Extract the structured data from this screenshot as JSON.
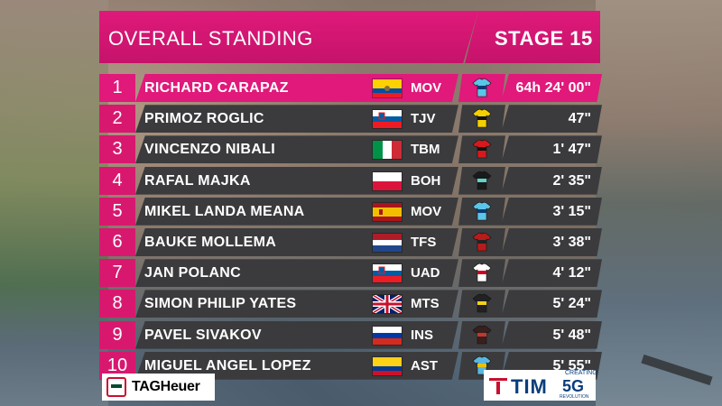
{
  "header": {
    "title": "OVERALL STANDING",
    "stage": "STAGE 15"
  },
  "colors": {
    "accent": "#e0197a",
    "row_bg": "#3b3b3d"
  },
  "rows": [
    {
      "rank": "1",
      "name": "RICHARD CARAPAZ",
      "flag": "ecuador",
      "team": "MOV",
      "jersey": "movistar",
      "time": "64h 24' 00\""
    },
    {
      "rank": "2",
      "name": "PRIMOZ ROGLIC",
      "flag": "slovenia",
      "team": "TJV",
      "jersey": "jumbo",
      "time": "47\""
    },
    {
      "rank": "3",
      "name": "VINCENZO NIBALI",
      "flag": "italy",
      "team": "TBM",
      "jersey": "bahrain",
      "time": "1' 47\""
    },
    {
      "rank": "4",
      "name": "RAFAL MAJKA",
      "flag": "poland",
      "team": "BOH",
      "jersey": "bora",
      "time": "2' 35\""
    },
    {
      "rank": "5",
      "name": "MIKEL LANDA MEANA",
      "flag": "spain",
      "team": "MOV",
      "jersey": "movistar",
      "time": "3' 15\""
    },
    {
      "rank": "6",
      "name": "BAUKE MOLLEMA",
      "flag": "netherlands",
      "team": "TFS",
      "jersey": "trek",
      "time": "3' 38\""
    },
    {
      "rank": "7",
      "name": "JAN POLANC",
      "flag": "slovenia",
      "team": "UAD",
      "jersey": "uae",
      "time": "4' 12\""
    },
    {
      "rank": "8",
      "name": "SIMON PHILIP YATES",
      "flag": "uk",
      "team": "MTS",
      "jersey": "mitchelton",
      "time": "5' 24\""
    },
    {
      "rank": "9",
      "name": "PAVEL SIVAKOV",
      "flag": "russia",
      "team": "INS",
      "jersey": "ineos",
      "time": "5' 48\""
    },
    {
      "rank": "10",
      "name": "MIGUEL ANGEL LOPEZ",
      "flag": "colombia",
      "team": "AST",
      "jersey": "astana",
      "time": "5' 55\""
    }
  ],
  "sponsors": {
    "tag": "TAGHeuer",
    "tim": "TIM",
    "tim_creating": "CREATING",
    "tim_5g": "5G",
    "tim_rev": "REVOLUTION"
  }
}
